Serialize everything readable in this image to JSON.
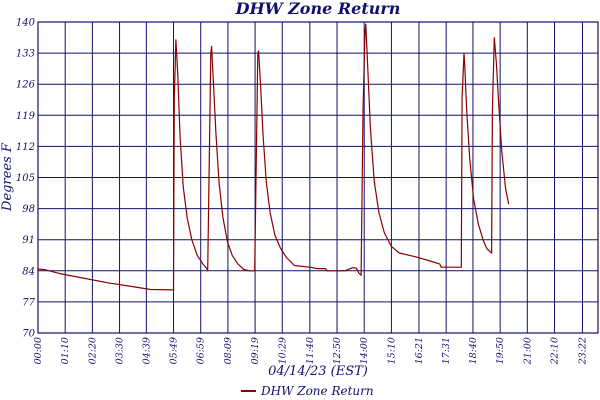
{
  "chart_data": {
    "type": "line",
    "title": "DHW Zone Return",
    "xlabel": "04/14/23 (EST)",
    "ylabel": "Degrees F",
    "ylim": [
      70,
      140
    ],
    "yticks": [
      70,
      77,
      84,
      91,
      98,
      105,
      112,
      119,
      126,
      133,
      140
    ],
    "xlim": [
      0,
      1442
    ],
    "xtick_labels": [
      "00:00",
      "01:10",
      "02:20",
      "03:30",
      "04:39",
      "05:49",
      "06:59",
      "08:09",
      "09:19",
      "10:29",
      "11:40",
      "12:50",
      "14:00",
      "15:10",
      "16:21",
      "17:31",
      "18:40",
      "19:50",
      "21:00",
      "22:10",
      "23:22"
    ],
    "xtick_minutes": [
      0,
      70,
      140,
      210,
      279,
      349,
      419,
      489,
      559,
      629,
      700,
      770,
      840,
      910,
      981,
      1051,
      1120,
      1190,
      1260,
      1330,
      1402
    ],
    "grid": true,
    "legend_position": "bottom-center",
    "series": [
      {
        "name": "DHW Zone Return",
        "color": "#8b0000",
        "points": [
          [
            0,
            84.4
          ],
          [
            20,
            84.2
          ],
          [
            60,
            83.3
          ],
          [
            120,
            82.3
          ],
          [
            180,
            81.3
          ],
          [
            240,
            80.5
          ],
          [
            290,
            79.8
          ],
          [
            349,
            79.7
          ],
          [
            351,
            123.0
          ],
          [
            355,
            136.0
          ],
          [
            360,
            128.0
          ],
          [
            366,
            114.0
          ],
          [
            374,
            103.0
          ],
          [
            384,
            96.0
          ],
          [
            396,
            91.0
          ],
          [
            410,
            87.5
          ],
          [
            425,
            85.5
          ],
          [
            435,
            84.5
          ],
          [
            437,
            84.0
          ],
          [
            445,
            133.0
          ],
          [
            447,
            134.5
          ],
          [
            452,
            126.0
          ],
          [
            458,
            115.0
          ],
          [
            466,
            104.0
          ],
          [
            476,
            96.0
          ],
          [
            488,
            90.5
          ],
          [
            500,
            87.5
          ],
          [
            515,
            85.5
          ],
          [
            530,
            84.3
          ],
          [
            545,
            84.0
          ],
          [
            556,
            84.0
          ],
          [
            558,
            84.0
          ],
          [
            566,
            133.0
          ],
          [
            568,
            133.5
          ],
          [
            573,
            126.0
          ],
          [
            580,
            114.0
          ],
          [
            588,
            104.0
          ],
          [
            598,
            97.0
          ],
          [
            610,
            92.0
          ],
          [
            625,
            89.0
          ],
          [
            640,
            87.0
          ],
          [
            660,
            85.2
          ],
          [
            700,
            84.8
          ],
          [
            720,
            84.5
          ],
          [
            740,
            84.5
          ],
          [
            745,
            84.0
          ],
          [
            790,
            84.0
          ],
          [
            810,
            84.7
          ],
          [
            820,
            84.6
          ],
          [
            826,
            83.5
          ],
          [
            832,
            83.0
          ],
          [
            837,
            120.0
          ],
          [
            842,
            138.0
          ],
          [
            844,
            139.5
          ],
          [
            849,
            130.0
          ],
          [
            856,
            116.0
          ],
          [
            866,
            104.0
          ],
          [
            878,
            97.0
          ],
          [
            892,
            92.5
          ],
          [
            910,
            89.5
          ],
          [
            930,
            88.0
          ],
          [
            970,
            87.2
          ],
          [
            1010,
            86.2
          ],
          [
            1035,
            85.5
          ],
          [
            1038,
            84.8
          ],
          [
            1070,
            84.8
          ],
          [
            1090,
            84.8
          ],
          [
            1092,
            123.0
          ],
          [
            1097,
            133.0
          ],
          [
            1099,
            130.0
          ],
          [
            1104,
            120.0
          ],
          [
            1112,
            109.0
          ],
          [
            1122,
            100.0
          ],
          [
            1134,
            94.5
          ],
          [
            1146,
            91.0
          ],
          [
            1156,
            89.0
          ],
          [
            1164,
            88.3
          ],
          [
            1168,
            88.0
          ],
          [
            1170,
            120.0
          ],
          [
            1175,
            136.5
          ],
          [
            1180,
            131.0
          ],
          [
            1186,
            122.0
          ],
          [
            1194,
            111.0
          ],
          [
            1204,
            102.5
          ],
          [
            1212,
            99.0
          ]
        ]
      }
    ]
  }
}
